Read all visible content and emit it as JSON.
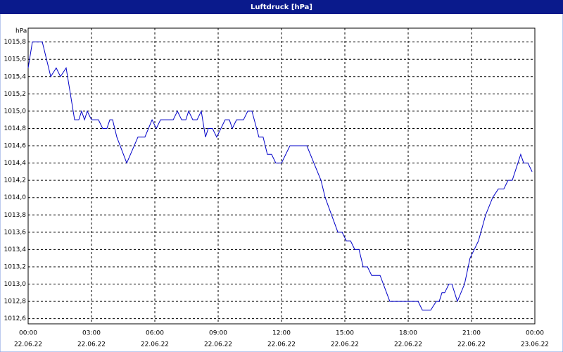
{
  "chart_data": {
    "type": "line",
    "title": "Luftdruck [hPa]",
    "y_label": "hPa",
    "x": [
      0,
      0.2,
      0.67,
      1.07,
      1.33,
      1.53,
      1.8,
      2.2,
      2.4,
      2.53,
      2.67,
      2.8,
      3.0,
      3.33,
      3.53,
      3.73,
      3.87,
      4.0,
      4.2,
      4.67,
      5.2,
      5.53,
      5.87,
      6.07,
      6.27,
      6.87,
      7.07,
      7.27,
      7.47,
      7.6,
      7.8,
      8.0,
      8.2,
      8.4,
      8.53,
      8.73,
      8.93,
      9.13,
      9.33,
      9.53,
      9.67,
      9.87,
      10.2,
      10.4,
      10.6,
      10.93,
      11.13,
      11.33,
      11.53,
      11.73,
      12.0,
      12.4,
      13.2,
      13.87,
      14.07,
      14.67,
      14.87,
      15.07,
      15.27,
      15.47,
      15.67,
      15.87,
      16.07,
      16.27,
      16.67,
      17.13,
      18.47,
      18.67,
      19.07,
      19.33,
      19.47,
      19.6,
      19.73,
      19.93,
      20.07,
      20.33,
      20.67,
      20.93,
      21.33,
      21.67,
      22.0,
      22.27,
      22.53,
      22.73,
      22.93,
      23.33,
      23.47,
      23.67,
      23.87
    ],
    "series": [
      {
        "name": "Luftdruck",
        "color": "#0000c8",
        "values": [
          1015.5,
          1015.8,
          1015.8,
          1015.4,
          1015.5,
          1015.4,
          1015.5,
          1014.9,
          1014.9,
          1015.0,
          1014.9,
          1015.0,
          1014.9,
          1014.9,
          1014.8,
          1014.8,
          1014.9,
          1014.9,
          1014.7,
          1014.4,
          1014.7,
          1014.7,
          1014.9,
          1014.8,
          1014.9,
          1014.9,
          1015.0,
          1014.9,
          1014.9,
          1015.0,
          1014.9,
          1014.9,
          1015.0,
          1014.7,
          1014.8,
          1014.8,
          1014.7,
          1014.8,
          1014.9,
          1014.9,
          1014.8,
          1014.9,
          1014.9,
          1015.0,
          1015.0,
          1014.7,
          1014.7,
          1014.5,
          1014.5,
          1014.4,
          1014.4,
          1014.6,
          1014.6,
          1014.2,
          1014.0,
          1013.6,
          1013.6,
          1013.5,
          1013.5,
          1013.4,
          1013.4,
          1013.2,
          1013.2,
          1013.1,
          1013.1,
          1012.8,
          1012.8,
          1012.7,
          1012.7,
          1012.8,
          1012.8,
          1012.9,
          1012.9,
          1013.0,
          1013.0,
          1012.8,
          1013.0,
          1013.3,
          1013.5,
          1013.8,
          1014.0,
          1014.1,
          1014.1,
          1014.2,
          1014.2,
          1014.5,
          1014.4,
          1014.4,
          1014.3
        ]
      }
    ],
    "xlim": [
      0,
      24
    ],
    "xticks": [
      {
        "value": 0,
        "label": [
          "00:00",
          "22.06.22"
        ]
      },
      {
        "value": 3,
        "label": [
          "03:00",
          "22.06.22"
        ]
      },
      {
        "value": 6,
        "label": [
          "06:00",
          "22.06.22"
        ]
      },
      {
        "value": 9,
        "label": [
          "09:00",
          "22.06.22"
        ]
      },
      {
        "value": 12,
        "label": [
          "12:00",
          "22.06.22"
        ]
      },
      {
        "value": 15,
        "label": [
          "15:00",
          "22.06.22"
        ]
      },
      {
        "value": 18,
        "label": [
          "18:00",
          "22.06.22"
        ]
      },
      {
        "value": 21,
        "label": [
          "21:00",
          "22.06.22"
        ]
      },
      {
        "value": 24,
        "label": [
          "00:00",
          "23.06.22"
        ]
      }
    ],
    "ylim": [
      1012.54,
      1015.96
    ],
    "yticks": [
      {
        "value": 1012.6,
        "label": "1012,6"
      },
      {
        "value": 1012.8,
        "label": "1012,8"
      },
      {
        "value": 1013.0,
        "label": "1013,0"
      },
      {
        "value": 1013.2,
        "label": "1013,2"
      },
      {
        "value": 1013.4,
        "label": "1013,4"
      },
      {
        "value": 1013.6,
        "label": "1013,6"
      },
      {
        "value": 1013.8,
        "label": "1013,8"
      },
      {
        "value": 1014.0,
        "label": "1014,0"
      },
      {
        "value": 1014.2,
        "label": "1014,2"
      },
      {
        "value": 1014.4,
        "label": "1014,4"
      },
      {
        "value": 1014.6,
        "label": "1014,6"
      },
      {
        "value": 1014.8,
        "label": "1014,8"
      },
      {
        "value": 1015.0,
        "label": "1015,0"
      },
      {
        "value": 1015.2,
        "label": "1015,2"
      },
      {
        "value": 1015.4,
        "label": "1015,4"
      },
      {
        "value": 1015.6,
        "label": "1015,6"
      },
      {
        "value": 1015.8,
        "label": "1015,8"
      }
    ],
    "grid": true
  }
}
